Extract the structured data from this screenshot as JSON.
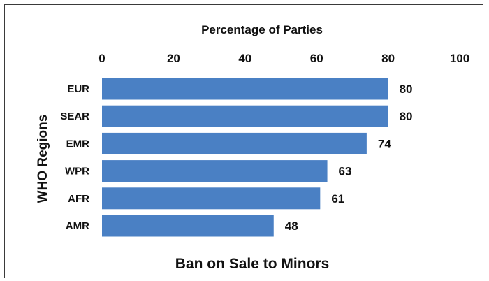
{
  "chart_data": {
    "type": "bar",
    "orientation": "horizontal",
    "title": "Ban on Sale to Minors",
    "xlabel": "Percentage of Parties",
    "ylabel": "WHO Regions",
    "categories": [
      "EUR",
      "SEAR",
      "EMR",
      "WPR",
      "AFR",
      "AMR"
    ],
    "values": [
      80,
      80,
      74,
      63,
      61,
      48
    ],
    "data_labels": [
      "80",
      "80",
      "74",
      "63",
      "61",
      "48"
    ],
    "xlim": [
      0,
      100
    ],
    "xticks": [
      "0",
      "20",
      "40",
      "60",
      "80",
      "100"
    ],
    "x_axis_position": "top",
    "grid": false,
    "legend": "none",
    "bar_color": "#4a80c4"
  }
}
